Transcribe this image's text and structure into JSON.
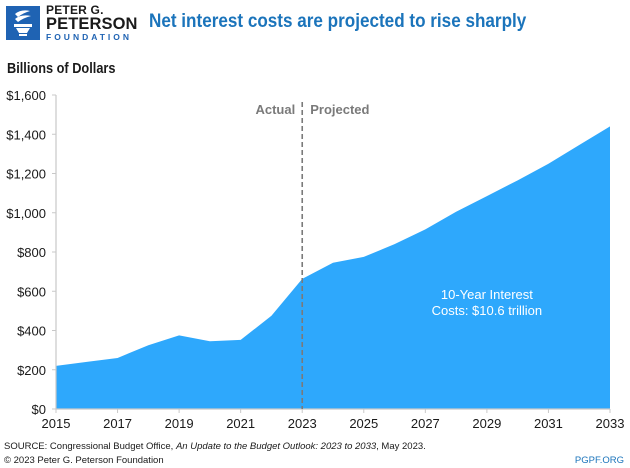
{
  "header": {
    "logo": {
      "line1": "PETER G.",
      "line2": "PETERSON",
      "line3": "FOUNDATION",
      "icon": "torch-icon",
      "color": "#1f63b3"
    },
    "title": "Net interest costs are projected to rise sharply"
  },
  "footer": {
    "source_prefix": "SOURCE: Congressional Budget Office, ",
    "source_title": "An Update to the Budget Outlook: 2023 to 2033",
    "source_suffix": ", May 2023.",
    "copyright": "© 2023 Peter G. Peterson Foundation",
    "site": "PGPF.ORG"
  },
  "chart_data": {
    "type": "area",
    "title": "Net interest costs are projected to rise sharply",
    "xlabel": "",
    "ylabel": "Billions of Dollars",
    "x": [
      2015,
      2016,
      2017,
      2018,
      2019,
      2020,
      2021,
      2022,
      2023,
      2024,
      2025,
      2026,
      2027,
      2028,
      2029,
      2030,
      2031,
      2032,
      2033
    ],
    "series": [
      {
        "name": "Net interest costs",
        "color": "#2ea8fc",
        "values": [
          220,
          240,
          260,
          325,
          375,
          345,
          352,
          475,
          663,
          745,
          775,
          840,
          915,
          1005,
          1085,
          1165,
          1250,
          1345,
          1440
        ]
      }
    ],
    "xlim": [
      2015,
      2033
    ],
    "ylim": [
      0,
      1600
    ],
    "x_ticks": [
      2015,
      2017,
      2019,
      2021,
      2023,
      2025,
      2027,
      2029,
      2031,
      2033
    ],
    "x_tick_labels": [
      "2015",
      "2017",
      "2019",
      "2021",
      "2023",
      "2025",
      "2027",
      "2029",
      "2031",
      "2033"
    ],
    "y_ticks": [
      0,
      200,
      400,
      600,
      800,
      1000,
      1200,
      1400,
      1600
    ],
    "y_tick_labels": [
      "$0",
      "$200",
      "$400",
      "$600",
      "$800",
      "$1,000",
      "$1,200",
      "$1,400",
      "$1,600"
    ],
    "grid": false,
    "divider": {
      "x": 2023,
      "left_label": "Actual",
      "right_label": "Projected",
      "color": "#7a7a7a"
    },
    "annotation": {
      "line1": "10-Year Interest",
      "line2": "Costs: $10.6 trillion",
      "x": 2029,
      "y": 560,
      "color": "#ffffff"
    },
    "axis_color": "#c8c8c8"
  }
}
